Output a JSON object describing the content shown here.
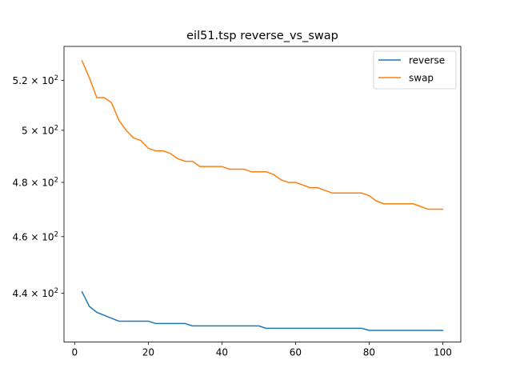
{
  "chart_data": {
    "type": "line",
    "title": "eil51.tsp  reverse_vs_swap",
    "xlabel": "",
    "ylabel": "",
    "xlim": [
      -2.9,
      104.9
    ],
    "ylim": [
      423.5,
      534.0
    ],
    "yscale": "log",
    "grid": false,
    "legend_position": "top-right",
    "x_ticks": [
      0,
      20,
      40,
      60,
      80,
      100
    ],
    "x_tick_labels": [
      "0",
      "20",
      "40",
      "60",
      "80",
      "100"
    ],
    "y_ticks": [
      440,
      460,
      480,
      500,
      520
    ],
    "y_tick_labels": [
      {
        "mant": "4.4",
        "exp": "2"
      },
      {
        "mant": "4.6",
        "exp": "2"
      },
      {
        "mant": "4.8",
        "exp": "2"
      },
      {
        "mant": "5",
        "exp": "2"
      },
      {
        "mant": "5.2",
        "exp": "2"
      }
    ],
    "x": [
      2,
      4,
      6,
      8,
      10,
      12,
      14,
      16,
      18,
      20,
      22,
      24,
      26,
      28,
      30,
      32,
      34,
      36,
      38,
      40,
      42,
      44,
      46,
      48,
      50,
      52,
      54,
      56,
      58,
      60,
      62,
      64,
      66,
      68,
      70,
      72,
      74,
      76,
      78,
      80,
      82,
      84,
      86,
      88,
      90,
      92,
      94,
      96,
      98,
      100
    ],
    "series": [
      {
        "name": "reverse",
        "color": "#1f77b4",
        "values": [
          440.5,
          435.5,
          433.5,
          432.5,
          431.5,
          430.5,
          430.5,
          430.5,
          430.5,
          430.5,
          429.7,
          429.7,
          429.7,
          429.7,
          429.7,
          428.9,
          428.9,
          428.9,
          428.9,
          428.9,
          428.9,
          428.9,
          428.9,
          428.9,
          428.9,
          428.1,
          428.1,
          428.1,
          428.1,
          428.1,
          428.1,
          428.1,
          428.1,
          428.1,
          428.1,
          428.1,
          428.1,
          428.1,
          428.1,
          427.4,
          427.4,
          427.4,
          427.4,
          427.4,
          427.4,
          427.4,
          427.4,
          427.4,
          427.4,
          427.4
        ]
      },
      {
        "name": "swap",
        "color": "#ff7f0e",
        "values": [
          528,
          521,
          513,
          513,
          511,
          504,
          500,
          497,
          496,
          493,
          492,
          492,
          491,
          489,
          488,
          488,
          486,
          486,
          486,
          486,
          485,
          485,
          485,
          484,
          484,
          484,
          483,
          481,
          480,
          480,
          479,
          478,
          478,
          477,
          476,
          476,
          476,
          476,
          476,
          475,
          473,
          472,
          472,
          472,
          472,
          472,
          471,
          470,
          470,
          470
        ]
      }
    ]
  }
}
